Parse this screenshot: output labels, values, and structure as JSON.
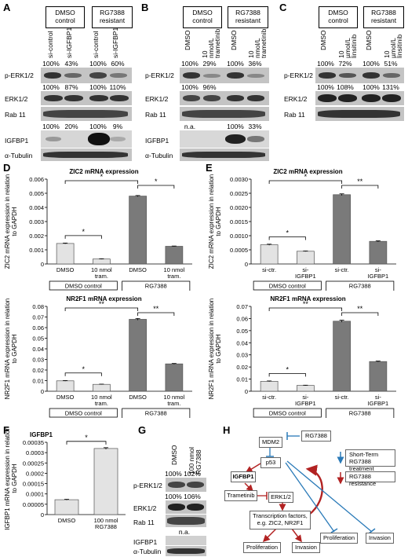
{
  "panels": {
    "A": {
      "label": "A",
      "groups": [
        "DMSO\ncontrol",
        "RG7388\nresistant"
      ],
      "columns": [
        "si-control",
        "si-IGFBP1",
        "si-control",
        "si-IGFBP1"
      ],
      "perk_pct": [
        "100%",
        "43%",
        "100%",
        "60%"
      ],
      "erk_pct": [
        "100%",
        "87%",
        "100%",
        "110%"
      ],
      "igfbp_pct": [
        "100%",
        "20%",
        "100%",
        "9%"
      ],
      "rows": [
        "p-ERK1/2",
        "ERK1/2",
        "Rab 11",
        "IGFBP1",
        "α-Tubulin"
      ]
    },
    "B": {
      "label": "B",
      "groups": [
        "DMSO\ncontrol",
        "RG7388\nresistant"
      ],
      "columns": [
        "DMSO",
        "10 nmol/L trametinib",
        "DMSO",
        "10 nmol/L trametinib"
      ],
      "perk_pct": [
        "100%",
        "29%",
        "100%",
        "36%"
      ],
      "erk_pct": [
        "100%",
        "96%"
      ],
      "igfbp_pct": [
        "n.a.",
        "100%",
        "33%"
      ],
      "rows": [
        "p-ERK1/2",
        "ERK1/2",
        "Rab 11",
        "IGFBP1",
        "α-Tubulin"
      ]
    },
    "C": {
      "label": "C",
      "groups": [
        "DMSO\ncontrol",
        "RG7388\nresistant"
      ],
      "columns": [
        "DMSO",
        "10 µmol/L linsitinib",
        "DMSO",
        "10 µmol/L linsitinib"
      ],
      "perk_pct": [
        "100%",
        "72%",
        "100%",
        "51%"
      ],
      "erk_pct": [
        "100%",
        "108%",
        "100%",
        "131%"
      ],
      "rows": [
        "p-ERK1/2",
        "ERK1/2",
        "Rab 11"
      ]
    },
    "D": {
      "label": "D"
    },
    "E": {
      "label": "E"
    },
    "F": {
      "label": "F"
    },
    "G": {
      "label": "G",
      "columns": [
        "DMSO",
        "100 nmol RG7388"
      ],
      "perk_pct": [
        "100%",
        "102%"
      ],
      "erk_pct": [
        "100%",
        "106%"
      ],
      "igfbp_na": "n.a.",
      "rows": [
        "p-ERK1/2",
        "ERK1/2",
        "Rab 11",
        "IGFBP1",
        "α-Tubulin"
      ]
    },
    "H": {
      "label": "H",
      "nodes": {
        "rg": "RG7388",
        "mdm2": "MDM2",
        "p53": "p53",
        "igfbp1": "IGFBP1",
        "trametinib": "Trametinib",
        "erk": "ERK1/2",
        "tf": "Transcription factors,\ne.g. ZIC2, NR2F1",
        "prolif1": "Proliferation",
        "invasion1": "Invasion",
        "prolif2": "Proliferation",
        "invasion2": "Invasion"
      },
      "legend": [
        "Short-Term\nRG7388 treatment",
        "RG7388 resistance"
      ]
    }
  },
  "chart_data": [
    {
      "id": "D-top",
      "type": "bar",
      "title": "ZIC2 mRNA expression",
      "ylabel": "ZIC2 mRNA expression in relation to GAPDH",
      "categories": [
        "DMSO",
        "10 nmol tram.",
        "DMSO",
        "10 nmol tram."
      ],
      "values": [
        0.00145,
        0.00035,
        0.0048,
        0.00125
      ],
      "errors": [
        3e-05,
        2e-05,
        4e-05,
        2e-05
      ],
      "ylim": [
        0,
        0.006
      ],
      "yticks": [
        "0",
        "0.001",
        "0.002",
        "0.003",
        "0.004",
        "0.005",
        "0.006"
      ],
      "groups": [
        "DMSO control",
        "RG7388 resistant"
      ],
      "significance": [
        "*",
        "*",
        "*"
      ]
    },
    {
      "id": "E-top",
      "type": "bar",
      "title": "ZIC2 mRNA expression",
      "ylabel": "ZIC2 mRNA expression in relation to GAPDH",
      "categories": [
        "si-ctr.",
        "si-IGFBP1",
        "si-ctr.",
        "si-IGFBP1"
      ],
      "values": [
        0.00068,
        0.00045,
        0.00245,
        0.0008
      ],
      "errors": [
        2e-05,
        1e-05,
        3e-05,
        2e-05
      ],
      "ylim": [
        0,
        0.003
      ],
      "yticks": [
        "0",
        "0.0005",
        "0.0010",
        "0.0015",
        "0.0020",
        "0.0025",
        "0.0030"
      ],
      "groups": [
        "DMSO control",
        "RG7388 resistant"
      ],
      "significance": [
        "*",
        "*",
        "**"
      ]
    },
    {
      "id": "D-bottom",
      "type": "bar",
      "title": "NR2F1 mRNA expression",
      "ylabel": "NR2F1 mRNA expression in relation to GAPDH",
      "categories": [
        "DMSO",
        "10 nmol tram.",
        "DMSO",
        "10 nmol tram."
      ],
      "values": [
        0.0098,
        0.0065,
        0.0678,
        0.0258
      ],
      "errors": [
        0.0003,
        0.0002,
        0.0008,
        0.0004
      ],
      "ylim": [
        0,
        0.08
      ],
      "yticks": [
        "0",
        "0.01",
        "0.02",
        "0.03",
        "0.04",
        "0.05",
        "0.06",
        "0.07",
        "0.08"
      ],
      "groups": [
        "DMSO control",
        "RG7388 resistant"
      ],
      "significance": [
        "*",
        "**",
        "**"
      ]
    },
    {
      "id": "E-bottom",
      "type": "bar",
      "title": "NR2F1 mRNA expression",
      "ylabel": "NR2F1 mRNA expression in relation to GAPDH",
      "categories": [
        "si-ctr.",
        "si-IGFBP1",
        "si-ctr.",
        "si-IGFBP1"
      ],
      "values": [
        0.0082,
        0.0048,
        0.0578,
        0.0245
      ],
      "errors": [
        0.0003,
        0.0002,
        0.0008,
        0.0004
      ],
      "ylim": [
        0,
        0.07
      ],
      "yticks": [
        "0",
        "0.01",
        "0.02",
        "0.03",
        "0.04",
        "0.05",
        "0.06",
        "0.07"
      ],
      "groups": [
        "DMSO control",
        "RG7388 resistant"
      ],
      "significance": [
        "*",
        "**",
        "**"
      ]
    },
    {
      "id": "F",
      "type": "bar",
      "title": "IGFBP1",
      "ylabel": "IGFBP1 mRNA expression in relation to GAPDH",
      "categories": [
        "DMSO",
        "100 nmol RG7388"
      ],
      "values": [
        7.2e-05,
        0.00032
      ],
      "errors": [
        2e-06,
        4e-06
      ],
      "ylim": [
        0,
        0.00035
      ],
      "yticks": [
        "0",
        "0.00005",
        "0.0001",
        "0.00015",
        "0.0002",
        "0.00025",
        "0.0003",
        "0.00035"
      ],
      "significance": [
        "*"
      ]
    }
  ]
}
